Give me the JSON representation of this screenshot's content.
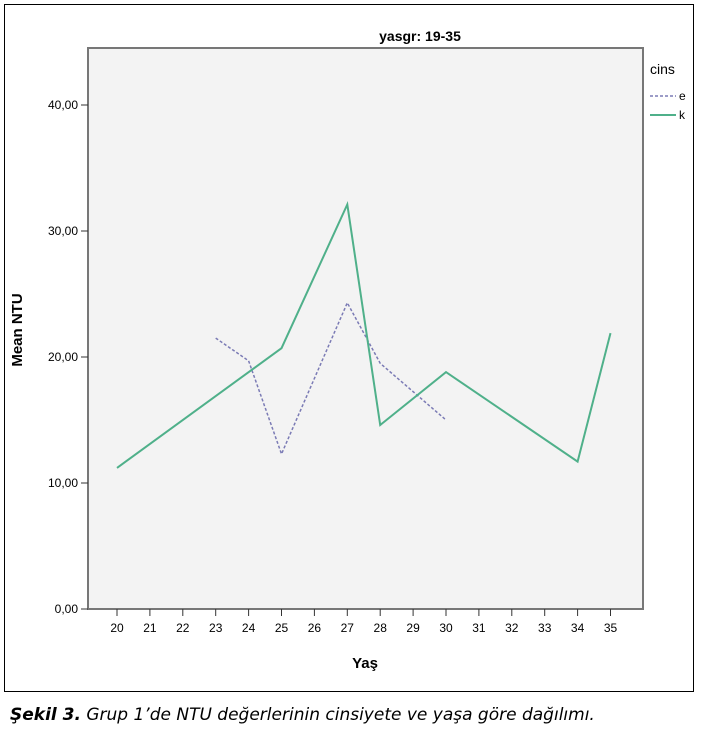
{
  "chart_data": {
    "type": "line",
    "title": "yasgr: 19-35",
    "xlabel": "Yaş",
    "ylabel": "Mean NTU",
    "x": [
      "20",
      "21",
      "22",
      "23",
      "24",
      "25",
      "26",
      "27",
      "28",
      "29",
      "30",
      "31",
      "32",
      "33",
      "34",
      "35"
    ],
    "y_ticks": [
      "0,00",
      "10,00",
      "20,00",
      "30,00",
      "40,00"
    ],
    "ylim": [
      0,
      45
    ],
    "legend": {
      "title": "cins",
      "placement": "top-right"
    },
    "series": [
      {
        "name": "e",
        "style": "dashed",
        "color": "#7b7bb5",
        "points": [
          [
            23,
            21.5
          ],
          [
            24,
            19.7
          ],
          [
            25,
            12.3
          ],
          [
            27,
            24.3
          ],
          [
            28,
            19.5
          ],
          [
            30,
            15.0
          ]
        ]
      },
      {
        "name": "k",
        "style": "solid",
        "color": "#4fb08a",
        "points": [
          [
            20,
            11.2
          ],
          [
            25,
            20.7
          ],
          [
            27,
            32.1
          ],
          [
            28,
            14.6
          ],
          [
            30,
            18.8
          ],
          [
            34,
            11.7
          ],
          [
            35,
            21.9
          ]
        ]
      }
    ],
    "grid": false
  },
  "caption": {
    "lead": "Şekil 3.",
    "text": " Grup 1’de NTU değerlerinin cinsiyete ve yaşa göre dağılımı."
  }
}
